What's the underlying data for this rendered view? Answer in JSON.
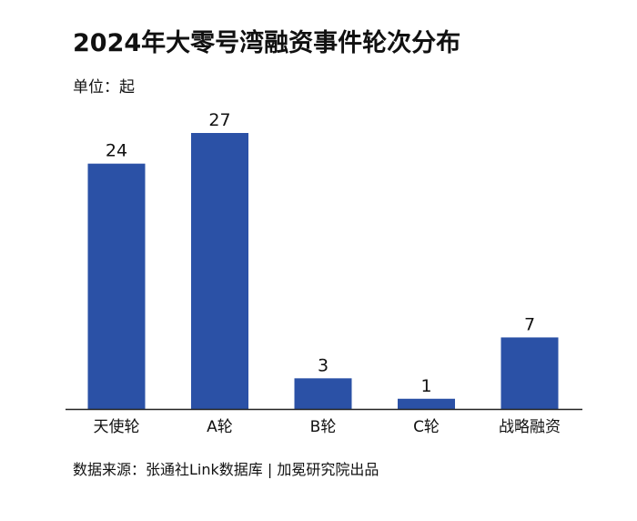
{
  "title": "2024年大零号湾融资事件轮次分布",
  "unit_label": "单位：起",
  "source": "数据来源：张通社Link数据库 | 加冕研究院出品",
  "colors": {
    "bar": "#2b51a6",
    "axis": "#222222",
    "text": "#111111"
  },
  "chart_data": {
    "type": "bar",
    "title": "2024年大零号湾融资事件轮次分布",
    "ylabel": "单位：起",
    "categories": [
      "天使轮",
      "A轮",
      "B轮",
      "C轮",
      "战略融资"
    ],
    "values": [
      24,
      27,
      3,
      1,
      7
    ],
    "data_labels": [
      "24",
      "27",
      "3",
      "1",
      "7"
    ],
    "ylim": [
      0,
      27
    ],
    "grid": false,
    "legend": "none"
  }
}
